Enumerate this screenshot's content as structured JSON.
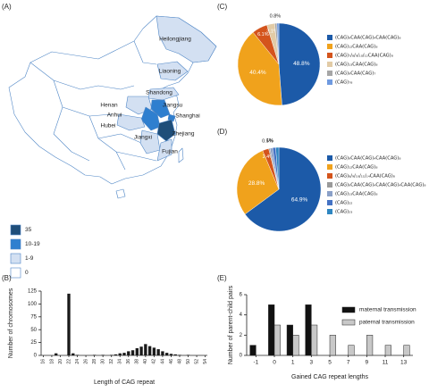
{
  "chart_data": [
    {
      "type": "map",
      "panel_label": "(A)",
      "regions": [
        "Heilongjiang",
        "Liaoning",
        "Shandong",
        "Henan",
        "Jiangsu",
        "Anhui",
        "Shanghai",
        "Hubei",
        "Zhejiang",
        "Jiangxi",
        "Fujian"
      ],
      "legend": [
        "35",
        "10-19",
        "1-9",
        "0"
      ],
      "legend_colors": [
        "#1f4e79",
        "#2f7fcf",
        "#d3e0f2",
        "#ffffff"
      ]
    },
    {
      "type": "histogram",
      "panel_label": "(B)",
      "x_label": "Length of CAG repeat",
      "y_label": "Number of chromosomes",
      "color": "#1a1a1a",
      "categories": [
        "16",
        null,
        "18",
        null,
        "20",
        null,
        "22",
        null,
        "24",
        null,
        "26",
        null,
        "28",
        null,
        "30",
        null,
        "32",
        null,
        "34",
        null,
        "36",
        null,
        "38",
        null,
        "40",
        null,
        "42",
        null,
        "44",
        null,
        "46",
        null,
        "48",
        null,
        "50",
        null,
        "52",
        null,
        "54"
      ],
      "values": [
        0,
        0,
        0,
        4,
        0,
        0,
        120,
        4,
        1,
        0,
        0,
        0,
        1,
        0,
        1,
        0,
        1,
        2,
        4,
        5,
        8,
        10,
        14,
        17,
        22,
        18,
        15,
        12,
        8,
        5,
        3,
        2,
        1,
        0,
        1,
        0,
        0,
        0,
        0
      ],
      "ylim": [
        0,
        125
      ],
      "yticks": [
        0,
        25,
        50,
        75,
        100,
        125
      ]
    },
    {
      "type": "pie",
      "panel_label": "(C)",
      "categories": [
        "(CAG)₉CAA(CAG)₄CAA(CAG)₈",
        "(CAG)₁₂CAA(CAG)₈",
        "(CAG)₇/₈/₉/₁₀/₁₂CAA(CAG)₈",
        "(CAG)₁₃CAA(CAG)₈",
        "(CAG)₉CAA(CAG)₇",
        "(CAG)₇₈"
      ],
      "values": [
        48.8,
        40.4,
        6.1,
        3.1,
        0.8,
        0.8
      ],
      "value_labels": [
        "48.8%",
        "40.4%",
        "6.1%",
        "3.1%",
        "0.8%",
        null
      ],
      "colors": [
        "#1c5aa8",
        "#f0a21c",
        "#d4541c",
        "#e2cba6",
        "#a6a6a6",
        "#6f9ae0"
      ]
    },
    {
      "type": "pie",
      "panel_label": "(D)",
      "categories": [
        "(CAG)₉CAA(CAG)₄CAA(CAG)₈",
        "(CAG)₁₂CAA(CAG)₈",
        "(CAG)₈/₉/₁₀/₁₁/₁₄CAA(CAG)₈",
        "(CAG)₉CAA(CAG)₄CAA(CAG)₄CAA(CAG)₈",
        "(CAG)₁₃CAA(CAG)₈",
        "(CAG)₂₂",
        "(CAG)₂₃"
      ],
      "values": [
        64.9,
        28.8,
        2.4,
        0.5,
        1,
        1.2,
        1.2
      ],
      "value_labels": [
        "64.9%",
        "28.8%",
        "2.4%",
        "0.5%",
        "1%",
        null,
        null
      ],
      "colors": [
        "#1c5aa8",
        "#f0a21c",
        "#d4541c",
        "#9a9a9a",
        "#8aa0c8",
        "#4472c4",
        "#2e86c1"
      ]
    },
    {
      "type": "grouped_bar",
      "panel_label": "(E)",
      "x_label": "Gained CAG repeat lengths",
      "y_label": "Number of parent-child pairs",
      "categories": [
        "-1",
        "0",
        "1",
        "3",
        "5",
        "7",
        "9",
        "11",
        "13"
      ],
      "series": [
        {
          "name": "maternal transmission",
          "color": "#111111",
          "values": [
            1,
            5,
            3,
            5,
            0,
            0,
            0,
            0,
            0
          ]
        },
        {
          "name": "paternal transmission",
          "color": "#c8c8c8",
          "values": [
            0,
            3,
            2,
            3,
            2,
            1,
            2,
            1,
            1
          ]
        }
      ],
      "ylim": [
        0,
        6
      ],
      "yticks": [
        0,
        2,
        4,
        6
      ]
    }
  ]
}
